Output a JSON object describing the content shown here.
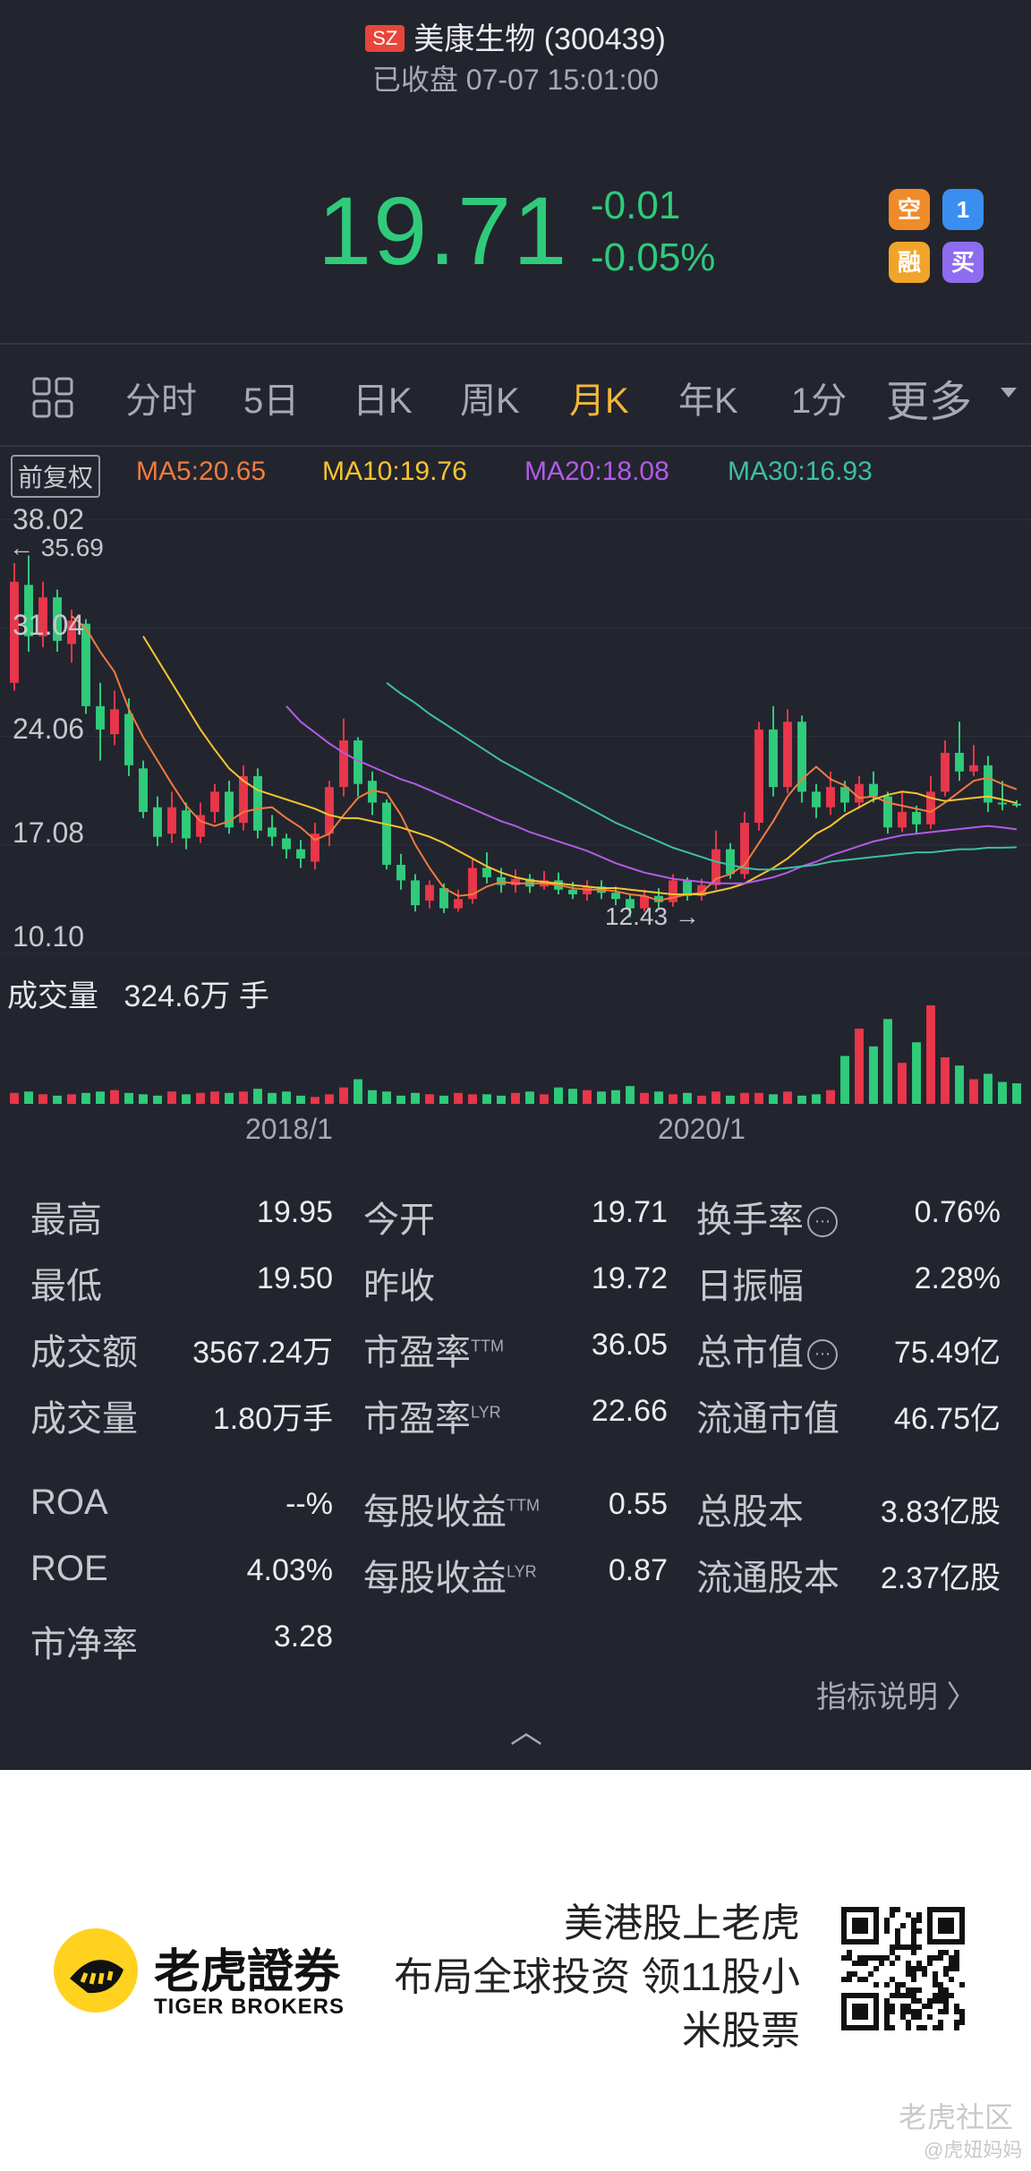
{
  "header": {
    "exchange": "SZ",
    "stock_name": "美康生物 (300439)",
    "status": "已收盘 07-07 15:01:00",
    "price": "19.71",
    "change": "-0.01",
    "change_pct": "-0.05%",
    "icons": [
      "空",
      "1",
      "融",
      "买"
    ]
  },
  "tabs": [
    {
      "label": "分时"
    },
    {
      "label": "5日"
    },
    {
      "label": "日K"
    },
    {
      "label": "周K"
    },
    {
      "label": "月K"
    },
    {
      "label": "年K"
    },
    {
      "label": "1分"
    },
    {
      "label": "更多"
    }
  ],
  "active_tab": "月K",
  "chart": {
    "restore_label": "前复权",
    "ma": [
      {
        "label": "MA5:20.65",
        "color": "#f07b3f"
      },
      {
        "label": "MA10:19.76",
        "color": "#f5c531"
      },
      {
        "label": "MA20:18.08",
        "color": "#b25be8"
      },
      {
        "label": "MA30:16.93",
        "color": "#3dbfa4"
      }
    ],
    "y_labels": [
      "38.02",
      "31.04",
      "24.06",
      "17.08",
      "10.10"
    ],
    "high_marker": "← 35.69",
    "low_marker": "12.43 →",
    "volume_label": "成交量",
    "volume_value": "324.6万 手",
    "dates": [
      "2018/1",
      "2020/1"
    ]
  },
  "chart_data": {
    "type": "candlestick",
    "period": "月K",
    "ylim": [
      10.1,
      38.02
    ],
    "candles": [
      {
        "o": 27.5,
        "c": 34.0,
        "h": 35.2,
        "l": 27.0
      },
      {
        "o": 33.8,
        "c": 30.5,
        "h": 35.69,
        "l": 29.5
      },
      {
        "o": 30.5,
        "c": 33.0,
        "h": 34.0,
        "l": 29.8
      },
      {
        "o": 33.0,
        "c": 30.2,
        "h": 33.5,
        "l": 29.5
      },
      {
        "o": 30.0,
        "c": 31.5,
        "h": 32.2,
        "l": 28.8
      },
      {
        "o": 31.3,
        "c": 26.0,
        "h": 31.6,
        "l": 25.5
      },
      {
        "o": 26.0,
        "c": 24.5,
        "h": 27.5,
        "l": 22.5
      },
      {
        "o": 24.2,
        "c": 25.8,
        "h": 27.0,
        "l": 23.5
      },
      {
        "o": 25.5,
        "c": 22.2,
        "h": 26.5,
        "l": 21.5
      },
      {
        "o": 22.0,
        "c": 19.2,
        "h": 22.5,
        "l": 18.8
      },
      {
        "o": 19.5,
        "c": 17.6,
        "h": 20.2,
        "l": 17.0
      },
      {
        "o": 17.8,
        "c": 19.5,
        "h": 20.5,
        "l": 17.2
      },
      {
        "o": 19.3,
        "c": 17.5,
        "h": 19.8,
        "l": 16.8
      },
      {
        "o": 17.6,
        "c": 19.0,
        "h": 19.8,
        "l": 17.2
      },
      {
        "o": 19.2,
        "c": 20.5,
        "h": 21.0,
        "l": 18.5
      },
      {
        "o": 20.5,
        "c": 18.2,
        "h": 21.2,
        "l": 17.8
      },
      {
        "o": 18.5,
        "c": 21.5,
        "h": 22.2,
        "l": 18.0
      },
      {
        "o": 21.5,
        "c": 18.0,
        "h": 22.0,
        "l": 17.5
      },
      {
        "o": 18.2,
        "c": 17.6,
        "h": 19.0,
        "l": 17.0
      },
      {
        "o": 17.5,
        "c": 16.8,
        "h": 17.8,
        "l": 16.2
      },
      {
        "o": 16.8,
        "c": 16.2,
        "h": 17.4,
        "l": 15.6
      },
      {
        "o": 16.0,
        "c": 17.8,
        "h": 18.5,
        "l": 15.5
      },
      {
        "o": 17.8,
        "c": 20.8,
        "h": 21.2,
        "l": 17.0
      },
      {
        "o": 20.8,
        "c": 23.8,
        "h": 25.2,
        "l": 20.2
      },
      {
        "o": 23.8,
        "c": 21.0,
        "h": 24.0,
        "l": 20.2
      },
      {
        "o": 21.2,
        "c": 19.8,
        "h": 21.8,
        "l": 19.0
      },
      {
        "o": 19.8,
        "c": 15.8,
        "h": 20.0,
        "l": 15.5
      },
      {
        "o": 15.8,
        "c": 14.8,
        "h": 16.5,
        "l": 14.2
      },
      {
        "o": 14.8,
        "c": 13.2,
        "h": 15.2,
        "l": 12.8
      },
      {
        "o": 13.5,
        "c": 14.5,
        "h": 14.8,
        "l": 13.0
      },
      {
        "o": 14.3,
        "c": 13.0,
        "h": 14.6,
        "l": 12.7
      },
      {
        "o": 13.0,
        "c": 13.6,
        "h": 14.2,
        "l": 12.8
      },
      {
        "o": 13.6,
        "c": 15.6,
        "h": 16.2,
        "l": 13.3
      },
      {
        "o": 15.6,
        "c": 15.0,
        "h": 16.6,
        "l": 14.6
      },
      {
        "o": 15.0,
        "c": 14.5,
        "h": 15.6,
        "l": 14.0
      },
      {
        "o": 14.5,
        "c": 14.9,
        "h": 15.5,
        "l": 14.0
      },
      {
        "o": 14.9,
        "c": 14.4,
        "h": 15.2,
        "l": 14.0
      },
      {
        "o": 14.4,
        "c": 14.8,
        "h": 15.4,
        "l": 14.2
      },
      {
        "o": 14.8,
        "c": 14.2,
        "h": 15.3,
        "l": 13.9
      },
      {
        "o": 14.2,
        "c": 13.9,
        "h": 14.7,
        "l": 13.6
      },
      {
        "o": 13.9,
        "c": 14.4,
        "h": 14.8,
        "l": 13.5
      },
      {
        "o": 14.4,
        "c": 14.0,
        "h": 14.8,
        "l": 13.6
      },
      {
        "o": 14.0,
        "c": 13.6,
        "h": 14.4,
        "l": 13.2
      },
      {
        "o": 13.6,
        "c": 13.0,
        "h": 13.9,
        "l": 12.43
      },
      {
        "o": 13.0,
        "c": 13.8,
        "h": 14.2,
        "l": 12.8
      },
      {
        "o": 13.8,
        "c": 13.4,
        "h": 14.3,
        "l": 13.0
      },
      {
        "o": 13.4,
        "c": 14.8,
        "h": 15.2,
        "l": 13.1
      },
      {
        "o": 14.8,
        "c": 13.8,
        "h": 15.0,
        "l": 13.5
      },
      {
        "o": 13.8,
        "c": 14.5,
        "h": 14.9,
        "l": 13.5
      },
      {
        "o": 14.5,
        "c": 16.8,
        "h": 18.0,
        "l": 14.2
      },
      {
        "o": 16.8,
        "c": 15.2,
        "h": 17.2,
        "l": 14.9
      },
      {
        "o": 15.2,
        "c": 18.5,
        "h": 19.2,
        "l": 14.9
      },
      {
        "o": 18.5,
        "c": 24.5,
        "h": 25.0,
        "l": 18.0
      },
      {
        "o": 24.5,
        "c": 20.8,
        "h": 26.0,
        "l": 20.2
      },
      {
        "o": 20.8,
        "c": 25.0,
        "h": 25.8,
        "l": 20.4
      },
      {
        "o": 25.0,
        "c": 20.5,
        "h": 25.4,
        "l": 19.8
      },
      {
        "o": 20.5,
        "c": 19.5,
        "h": 21.0,
        "l": 18.8
      },
      {
        "o": 19.5,
        "c": 20.8,
        "h": 21.8,
        "l": 19.0
      },
      {
        "o": 20.8,
        "c": 19.8,
        "h": 21.2,
        "l": 19.2
      },
      {
        "o": 19.8,
        "c": 21.0,
        "h": 21.5,
        "l": 19.4
      },
      {
        "o": 21.0,
        "c": 20.2,
        "h": 21.8,
        "l": 19.8
      },
      {
        "o": 20.2,
        "c": 18.2,
        "h": 20.5,
        "l": 17.8
      },
      {
        "o": 18.2,
        "c": 19.2,
        "h": 20.5,
        "l": 17.9
      },
      {
        "o": 19.2,
        "c": 18.4,
        "h": 19.6,
        "l": 17.8
      },
      {
        "o": 18.4,
        "c": 20.5,
        "h": 21.5,
        "l": 18.1
      },
      {
        "o": 20.5,
        "c": 23.0,
        "h": 23.8,
        "l": 20.2
      },
      {
        "o": 23.0,
        "c": 21.8,
        "h": 25.0,
        "l": 21.2
      },
      {
        "o": 21.8,
        "c": 22.2,
        "h": 23.5,
        "l": 21.5
      },
      {
        "o": 22.2,
        "c": 19.8,
        "h": 22.8,
        "l": 19.2
      },
      {
        "o": 19.8,
        "c": 19.72,
        "h": 21.2,
        "l": 19.3
      },
      {
        "o": 19.72,
        "c": 19.71,
        "h": 19.95,
        "l": 19.5
      }
    ],
    "ma5": [
      null,
      null,
      null,
      null,
      31.8,
      31.0,
      29.5,
      28.2,
      25.8,
      24.0,
      22.5,
      21.0,
      19.6,
      18.6,
      18.3,
      18.6,
      19.2,
      19.4,
      19.5,
      18.8,
      18.2,
      17.4,
      17.8,
      19.0,
      20.1,
      20.6,
      20.4,
      19.0,
      17.1,
      15.6,
      14.3,
      13.8,
      13.9,
      14.4,
      14.7,
      14.6,
      14.6,
      14.6,
      14.5,
      14.3,
      14.2,
      14.2,
      14.1,
      13.9,
      13.8,
      13.5,
      13.7,
      13.9,
      14.0,
      14.9,
      15.2,
      15.8,
      17.2,
      18.6,
      20.2,
      21.3,
      22.1,
      21.3,
      20.9,
      20.1,
      20.2,
      19.8,
      19.6,
      19.4,
      19.2,
      19.8,
      20.5,
      21.2,
      21.4,
      21.0,
      20.65
    ],
    "ma10": [
      null,
      null,
      null,
      null,
      null,
      null,
      null,
      null,
      null,
      30.5,
      29.0,
      27.5,
      26.0,
      24.5,
      23.2,
      22.0,
      21.2,
      20.6,
      20.3,
      20.0,
      19.7,
      19.4,
      19.0,
      18.8,
      18.8,
      18.6,
      18.4,
      18.2,
      17.9,
      17.6,
      17.2,
      16.7,
      16.2,
      15.7,
      15.3,
      15.0,
      14.8,
      14.7,
      14.6,
      14.5,
      14.4,
      14.3,
      14.3,
      14.2,
      14.1,
      14.0,
      13.9,
      13.9,
      13.9,
      14.1,
      14.3,
      14.6,
      15.1,
      15.6,
      16.2,
      17.0,
      17.8,
      18.3,
      19.0,
      19.5,
      20.0,
      20.3,
      20.5,
      20.4,
      20.1,
      19.9,
      20.0,
      20.1,
      20.2,
      20.0,
      19.76
    ],
    "ma20": [
      null,
      null,
      null,
      null,
      null,
      null,
      null,
      null,
      null,
      null,
      null,
      null,
      null,
      null,
      null,
      null,
      null,
      null,
      null,
      26.0,
      25.0,
      24.3,
      23.6,
      23.0,
      22.5,
      22.1,
      21.7,
      21.3,
      21.0,
      20.6,
      20.2,
      19.8,
      19.4,
      19.0,
      18.6,
      18.3,
      17.9,
      17.6,
      17.3,
      17.0,
      16.7,
      16.3,
      15.9,
      15.6,
      15.3,
      15.1,
      14.9,
      14.8,
      14.7,
      14.6,
      14.6,
      14.6,
      14.8,
      15.0,
      15.3,
      15.7,
      16.0,
      16.4,
      16.7,
      17.0,
      17.3,
      17.5,
      17.7,
      17.8,
      17.9,
      18.0,
      18.1,
      18.2,
      18.3,
      18.2,
      18.08
    ],
    "ma30": [
      null,
      null,
      null,
      null,
      null,
      null,
      null,
      null,
      null,
      null,
      null,
      null,
      null,
      null,
      null,
      null,
      null,
      null,
      null,
      null,
      null,
      null,
      null,
      null,
      null,
      null,
      27.5,
      26.8,
      26.2,
      25.5,
      24.9,
      24.3,
      23.7,
      23.1,
      22.5,
      22.0,
      21.5,
      21.0,
      20.5,
      20.0,
      19.5,
      19.0,
      18.5,
      18.1,
      17.7,
      17.3,
      16.9,
      16.6,
      16.3,
      16.0,
      15.8,
      15.6,
      15.5,
      15.5,
      15.6,
      15.7,
      15.8,
      16.0,
      16.1,
      16.2,
      16.3,
      16.4,
      16.5,
      16.6,
      16.6,
      16.7,
      16.8,
      16.8,
      16.9,
      16.9,
      16.93
    ],
    "volume": [
      0.8,
      0.9,
      0.7,
      0.6,
      0.7,
      0.8,
      0.9,
      1.0,
      0.8,
      0.7,
      0.6,
      0.9,
      0.7,
      0.8,
      0.9,
      0.8,
      0.9,
      1.1,
      0.8,
      0.9,
      0.6,
      0.5,
      0.7,
      1.2,
      1.8,
      1.0,
      0.9,
      0.6,
      0.8,
      0.7,
      0.6,
      0.8,
      0.7,
      0.7,
      0.6,
      0.8,
      0.9,
      0.7,
      1.2,
      1.1,
      1.0,
      0.9,
      1.0,
      1.3,
      0.8,
      0.9,
      0.7,
      0.8,
      0.6,
      0.9,
      0.6,
      0.8,
      0.8,
      0.7,
      0.9,
      0.6,
      0.7,
      1.0,
      3.5,
      5.5,
      4.2,
      6.2,
      3.0,
      4.5,
      7.2,
      3.4,
      2.8,
      1.8,
      2.2,
      1.6,
      1.5
    ],
    "y_ticks": [
      38.02,
      31.04,
      24.06,
      17.08,
      10.1
    ],
    "x_labels": [
      "2018/1",
      "2020/1"
    ]
  },
  "stats": {
    "col1": [
      {
        "label": "最高",
        "value": "19.95"
      },
      {
        "label": "最低",
        "value": "19.50"
      },
      {
        "label": "成交额",
        "value": "3567.24万"
      },
      {
        "label": "成交量",
        "value": "1.80万手"
      },
      {
        "label": "ROA",
        "value": "--%"
      },
      {
        "label": "ROE",
        "value": "4.03%"
      },
      {
        "label": "市净率",
        "value": "3.28"
      }
    ],
    "col2": [
      {
        "label": "今开",
        "value": "19.71",
        "sup": ""
      },
      {
        "label": "昨收",
        "value": "19.72",
        "sup": ""
      },
      {
        "label": "市盈率",
        "value": "36.05",
        "sup": "TTM"
      },
      {
        "label": "市盈率",
        "value": "22.66",
        "sup": "LYR"
      },
      {
        "label": "每股收益",
        "value": "0.55",
        "sup": "TTM"
      },
      {
        "label": "每股收益",
        "value": "0.87",
        "sup": "LYR"
      }
    ],
    "col3": [
      {
        "label": "换手率",
        "value": "0.76%",
        "info": true
      },
      {
        "label": "日振幅",
        "value": "2.28%",
        "info": false
      },
      {
        "label": "总市值",
        "value": "75.49亿",
        "info": true
      },
      {
        "label": "流通市值",
        "value": "46.75亿",
        "info": false
      },
      {
        "label": "总股本",
        "value": "3.83亿股",
        "info": false
      },
      {
        "label": "流通股本",
        "value": "2.37亿股",
        "info": false
      }
    ],
    "info_glyph": "⋯",
    "explain_link": "指标说明 〉",
    "collapse_icon": "︿"
  },
  "footer": {
    "brand_cn": "老虎證券",
    "brand_en": "TIGER BROKERS",
    "promo_lines": [
      "美港股上老虎",
      "布局全球投资 领11股小",
      "米股票"
    ],
    "watermark1": "老虎社区",
    "watermark2": "@虎妞妈妈"
  },
  "colors": {
    "up": "#e8364a",
    "down": "#2fcb7b",
    "accent": "#f3b73a",
    "bg": "#23252e"
  }
}
